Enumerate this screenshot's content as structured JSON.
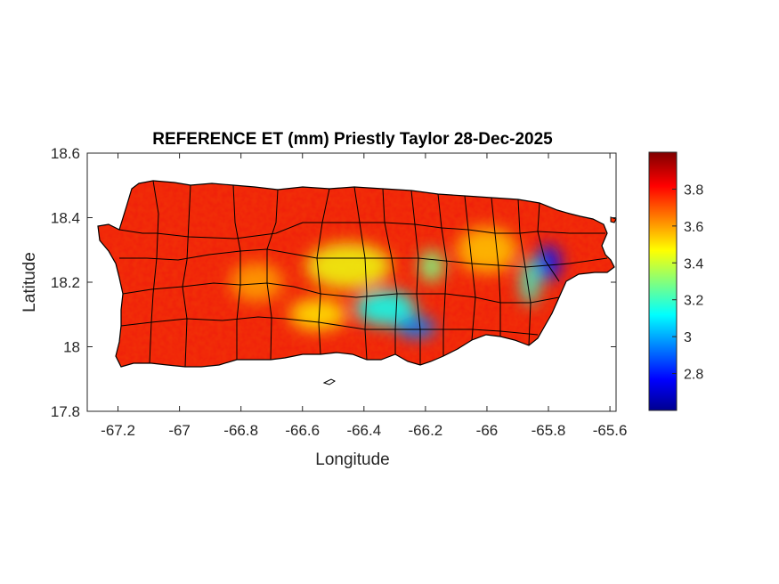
{
  "map": {
    "title": "REFERENCE ET (mm) Priestly Taylor 28-Dec-2025",
    "xlabel": "Longitude",
    "ylabel": "Latitude",
    "region": "Puerto Rico",
    "variable": "Reference ET (mm)",
    "xlim": [
      -67.3,
      -65.58
    ],
    "ylim": [
      17.8,
      18.6
    ],
    "xticks": [
      -67.2,
      -67,
      -66.8,
      -66.6,
      -66.4,
      -66.2,
      -66,
      -65.8,
      -65.6
    ],
    "yticks": [
      17.8,
      18,
      18.2,
      18.4,
      18.6
    ],
    "xtick_labels": [
      "-67.2",
      "-67",
      "-66.8",
      "-66.6",
      "-66.4",
      "-66.2",
      "-66",
      "-65.8",
      "-65.6"
    ],
    "ytick_labels": [
      "17.8",
      "18",
      "18.2",
      "18.4",
      "18.6"
    ],
    "colormap": "jet",
    "colorbar": {
      "range": [
        2.6,
        4.0
      ],
      "ticks": [
        2.8,
        3,
        3.2,
        3.4,
        3.6,
        3.8
      ],
      "tick_labels": [
        "2.8",
        "3",
        "3.2",
        "3.4",
        "3.6",
        "3.8"
      ]
    },
    "outline_color": "#000000",
    "low_zones": [
      {
        "lon": -66.33,
        "lat": 18.12,
        "value": 3.15
      },
      {
        "lon": -66.23,
        "lat": 18.06,
        "value": 2.95
      },
      {
        "lon": -65.8,
        "lat": 18.26,
        "value": 2.8
      },
      {
        "lon": -65.86,
        "lat": 18.2,
        "value": 3.2
      },
      {
        "lon": -66.18,
        "lat": 18.25,
        "value": 3.3
      }
    ],
    "mid_zones": [
      {
        "lon": -66.45,
        "lat": 18.25,
        "value": 3.45
      },
      {
        "lon": -66.75,
        "lat": 18.2,
        "value": 3.6
      },
      {
        "lon": -66.0,
        "lat": 18.3,
        "value": 3.55
      },
      {
        "lon": -66.55,
        "lat": 18.1,
        "value": 3.5
      }
    ]
  }
}
